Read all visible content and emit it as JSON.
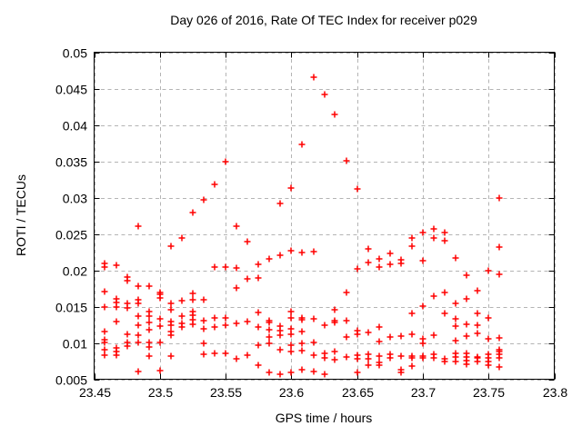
{
  "chart": {
    "title": "Day 026 of 2016, Rate Of TEC Index for receiver p029",
    "xlabel": "GPS time / hours",
    "ylabel": "ROTI / TECUs"
  },
  "chart_data": {
    "type": "scatter",
    "title": "Day 026 of 2016, Rate Of TEC Index for receiver p029",
    "xlabel": "GPS time / hours",
    "ylabel": "ROTI / TECUs",
    "xlim": [
      23.45,
      23.8
    ],
    "ylim": [
      0.005,
      0.05
    ],
    "x_ticks": [
      {
        "value": 23.45,
        "label": "23.45"
      },
      {
        "value": 23.5,
        "label": "23.5"
      },
      {
        "value": 23.55,
        "label": "23.55"
      },
      {
        "value": 23.6,
        "label": "23.6"
      },
      {
        "value": 23.65,
        "label": "23.65"
      },
      {
        "value": 23.7,
        "label": "23.7"
      },
      {
        "value": 23.75,
        "label": "23.75"
      },
      {
        "value": 23.8,
        "label": "23.8"
      }
    ],
    "y_ticks": [
      {
        "value": 0.005,
        "label": "0.005"
      },
      {
        "value": 0.01,
        "label": "0.01"
      },
      {
        "value": 0.015,
        "label": "0.015"
      },
      {
        "value": 0.02,
        "label": "0.02"
      },
      {
        "value": 0.025,
        "label": "0.025"
      },
      {
        "value": 0.03,
        "label": "0.03"
      },
      {
        "value": 0.035,
        "label": "0.035"
      },
      {
        "value": 0.04,
        "label": "0.04"
      },
      {
        "value": 0.045,
        "label": "0.045"
      },
      {
        "value": 0.05,
        "label": "0.05"
      }
    ],
    "grid": true,
    "legend": "none",
    "marker": "plus",
    "marker_color": "#ff0000",
    "grid_color": "#b4b4b4",
    "axis_color": "#000000",
    "series": [
      {
        "name": "ROTI",
        "columns": [
          {
            "t": 23.4583,
            "v": [
              0.0209,
              0.0204,
              0.0171,
              0.015,
              0.0116,
              0.0104,
              0.0101,
              0.0091,
              0.0083
            ]
          },
          {
            "t": 23.4667,
            "v": [
              0.0207,
              0.0161,
              0.0156,
              0.015,
              0.0129,
              0.0093,
              0.0088,
              0.0083
            ]
          },
          {
            "t": 23.475,
            "v": [
              0.0191,
              0.0186,
              0.0154,
              0.0148,
              0.0112,
              0.0101,
              0.0096
            ]
          },
          {
            "t": 23.4833,
            "v": [
              0.0261,
              0.0178,
              0.016,
              0.0154,
              0.0137,
              0.0124,
              0.0111,
              0.0101,
              0.0061
            ]
          },
          {
            "t": 23.4917,
            "v": [
              0.0178,
              0.0143,
              0.0137,
              0.0128,
              0.0118,
              0.0101,
              0.0095,
              0.0082
            ]
          },
          {
            "t": 23.5,
            "v": [
              0.017,
              0.0167,
              0.0162,
              0.0133,
              0.0123,
              0.0101,
              0.0062
            ]
          },
          {
            "t": 23.5083,
            "v": [
              0.0233,
              0.0154,
              0.0146,
              0.013,
              0.0125,
              0.0116,
              0.0111,
              0.0082
            ]
          },
          {
            "t": 23.5167,
            "v": [
              0.0245,
              0.0158,
              0.0137,
              0.0127,
              0.0122
            ]
          },
          {
            "t": 23.525,
            "v": [
              0.028,
              0.0168,
              0.016,
              0.0143,
              0.0138,
              0.0132,
              0.0126
            ]
          },
          {
            "t": 23.5333,
            "v": [
              0.0297,
              0.016,
              0.0131,
              0.0119,
              0.0099,
              0.0084
            ]
          },
          {
            "t": 23.5417,
            "v": [
              0.0318,
              0.0204,
              0.0134,
              0.0122,
              0.0086
            ]
          },
          {
            "t": 23.55,
            "v": [
              0.0349,
              0.0205,
              0.0134,
              0.0124,
              0.0086
            ]
          },
          {
            "t": 23.5583,
            "v": [
              0.0261,
              0.0203,
              0.0176,
              0.0127,
              0.0078
            ]
          },
          {
            "t": 23.5667,
            "v": [
              0.024,
              0.0188,
              0.013,
              0.0083
            ]
          },
          {
            "t": 23.575,
            "v": [
              0.0208,
              0.0189,
              0.0142,
              0.0122,
              0.0097,
              0.007
            ]
          },
          {
            "t": 23.5833,
            "v": [
              0.0216,
              0.0131,
              0.0128,
              0.0118,
              0.0108,
              0.0099,
              0.006
            ]
          },
          {
            "t": 23.5917,
            "v": [
              0.0292,
              0.0221,
              0.0123,
              0.0117,
              0.0111,
              0.0091,
              0.0057
            ]
          },
          {
            "t": 23.6,
            "v": [
              0.0313,
              0.0227,
              0.0143,
              0.0134,
              0.012,
              0.0112,
              0.0097,
              0.0088,
              0.006
            ]
          },
          {
            "t": 23.6083,
            "v": [
              0.0373,
              0.0225,
              0.0134,
              0.0132,
              0.0116,
              0.0099,
              0.0089,
              0.0063
            ]
          },
          {
            "t": 23.6167,
            "v": [
              0.0466,
              0.0226,
              0.0133,
              0.0101,
              0.0083,
              0.0061
            ]
          },
          {
            "t": 23.625,
            "v": [
              0.0442,
              0.0124,
              0.0086,
              0.0079,
              0.0057
            ]
          },
          {
            "t": 23.6333,
            "v": [
              0.0415,
              0.0146,
              0.0131,
              0.0128,
              0.0088,
              0.0077
            ]
          },
          {
            "t": 23.6417,
            "v": [
              0.0351,
              0.017,
              0.0131,
              0.0108,
              0.0081
            ]
          },
          {
            "t": 23.65,
            "v": [
              0.0312,
              0.0202,
              0.0117,
              0.0112,
              0.0083,
              0.0078,
              0.006
            ]
          },
          {
            "t": 23.6583,
            "v": [
              0.0229,
              0.0211,
              0.0115,
              0.0085,
              0.0078,
              0.007
            ]
          },
          {
            "t": 23.6667,
            "v": [
              0.0216,
              0.0205,
              0.0122,
              0.0102,
              0.0082,
              0.0073,
              0.007
            ]
          },
          {
            "t": 23.675,
            "v": [
              0.0223,
              0.0208,
              0.0108,
              0.0085,
              0.0079
            ]
          },
          {
            "t": 23.6833,
            "v": [
              0.0214,
              0.021,
              0.011,
              0.0082,
              0.0063,
              0.006
            ]
          },
          {
            "t": 23.6917,
            "v": [
              0.0244,
              0.0233,
              0.0141,
              0.0112,
              0.0082,
              0.0079,
              0.0068
            ]
          },
          {
            "t": 23.7,
            "v": [
              0.0252,
              0.0213,
              0.0151,
              0.0106,
              0.01,
              0.0082,
              0.0079
            ]
          },
          {
            "t": 23.7083,
            "v": [
              0.0257,
              0.0245,
              0.0165,
              0.0111,
              0.0085,
              0.0079
            ]
          },
          {
            "t": 23.7167,
            "v": [
              0.0252,
              0.0241,
              0.017,
              0.0141,
              0.0078,
              0.0075
            ]
          },
          {
            "t": 23.725,
            "v": [
              0.0217,
              0.0155,
              0.0133,
              0.0123,
              0.0103,
              0.0086,
              0.0081,
              0.0075
            ]
          },
          {
            "t": 23.7333,
            "v": [
              0.0193,
              0.0161,
              0.0126,
              0.011,
              0.0086,
              0.0081,
              0.0076,
              0.0071
            ]
          },
          {
            "t": 23.7417,
            "v": [
              0.0172,
              0.0141,
              0.0125,
              0.0113,
              0.0081,
              0.0079,
              0.0074
            ]
          },
          {
            "t": 23.75,
            "v": [
              0.02,
              0.0134,
              0.0106,
              0.0084,
              0.008,
              0.0075,
              0.007
            ]
          },
          {
            "t": 23.7583,
            "v": [
              0.0299,
              0.0232,
              0.0195,
              0.0107,
              0.0091,
              0.0088,
              0.0084,
              0.0079,
              0.0067
            ]
          }
        ]
      }
    ]
  }
}
